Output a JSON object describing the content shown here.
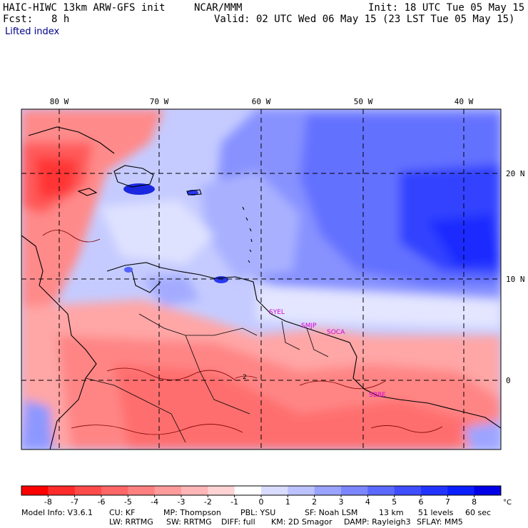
{
  "header": {
    "model_title": "HAIC-HIWC 13km ARW-GFS init",
    "center": "NCAR/MMM",
    "init": "Init: 18 UTC Tue 05 May 15",
    "fcst_label": "Fcst:",
    "fcst_value": "8 h",
    "valid": "Valid: 02 UTC Wed 06 May 15 (23 LST Tue 05 May 15)",
    "field": "Lifted index"
  },
  "map": {
    "lon_labels": [
      "80 W",
      "70 W",
      "60 W",
      "50 W",
      "40 W"
    ],
    "lat_labels": [
      "20 N",
      "10 N",
      "0"
    ],
    "stations": [
      "SYEL",
      "SMJP",
      "SOCA",
      "SBBE"
    ],
    "contour_label": "2"
  },
  "colorbar": {
    "ticks": [
      "-8",
      "-7",
      "-6",
      "-5",
      "-4",
      "-3",
      "-2",
      "-1",
      "0",
      "1",
      "2",
      "3",
      "4",
      "5",
      "6",
      "7",
      "8"
    ],
    "unit": "°C",
    "colors": [
      "#ff0000",
      "#ff2a2a",
      "#ff4a4a",
      "#ff6666",
      "#ff8080",
      "#ff9b9b",
      "#ffb6b6",
      "#ffd3d3",
      "#ffffff",
      "#d9dcff",
      "#bcc2ff",
      "#9aa3ff",
      "#7c87ff",
      "#5c69ff",
      "#3f4eff",
      "#2234ff",
      "#0a1eff",
      "#0000e6"
    ]
  },
  "footer": {
    "model_info": "Model Info: V3.6.1",
    "cu": "CU: KF",
    "mp": "MP: Thompson",
    "pbl": "PBL: YSU",
    "sf": "SF: Noah LSM",
    "res": "13 km",
    "levels": "51 levels",
    "dt": "60 sec",
    "lw": "LW: RRTMG",
    "sw": "SW: RRTMG",
    "diff": "DIFF: full",
    "km": "KM: 2D Smagor",
    "damp": "DAMP: Rayleigh3",
    "sflay": "SFLAY: MM5"
  }
}
